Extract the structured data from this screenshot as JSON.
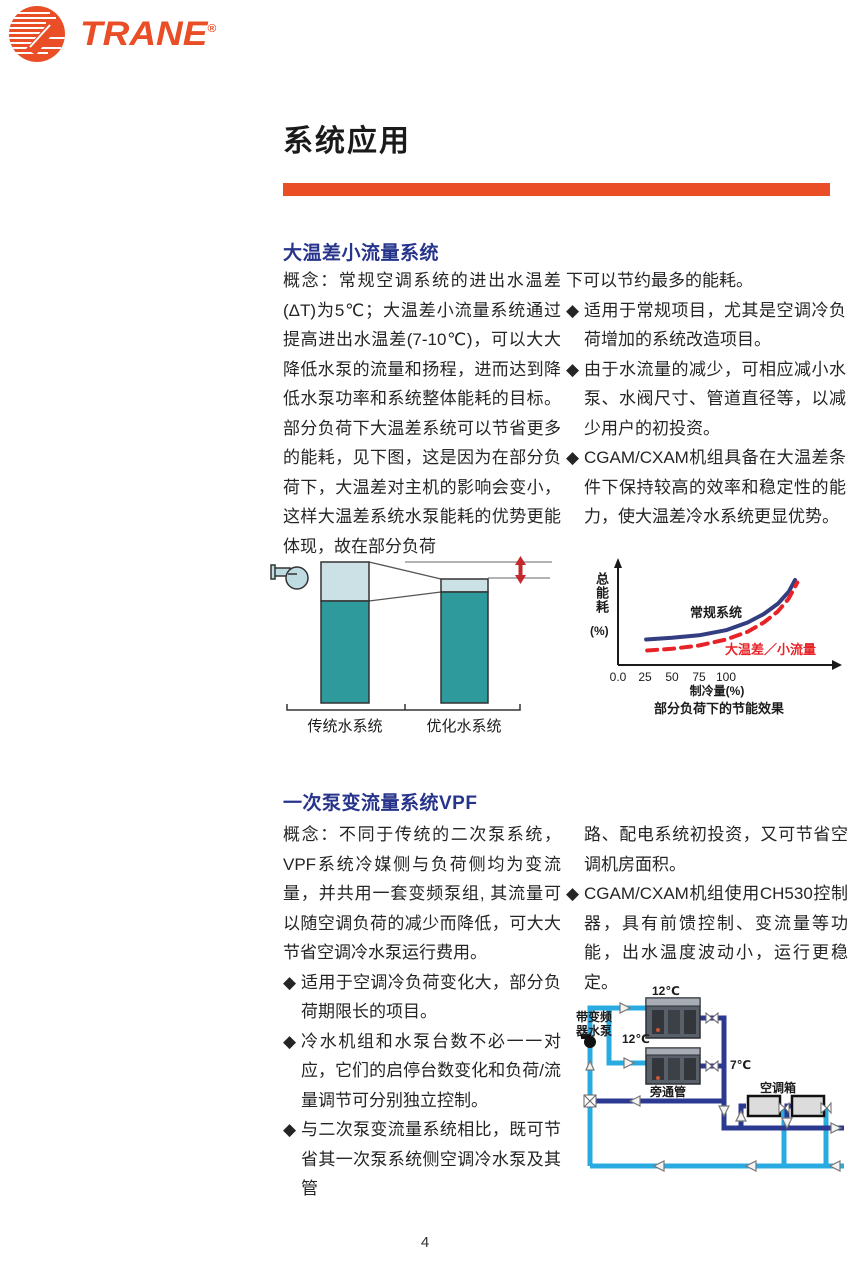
{
  "ui": {
    "bullet": "◆"
  },
  "logo": {
    "brand": "TRANE",
    "reg": "®"
  },
  "header": {
    "title": "系统应用"
  },
  "page": {
    "number": "4"
  },
  "section1": {
    "heading": "大温差小流量系统",
    "paragraph": "概念：常规空调系统的进出水温差(ΔT)为5℃；大温差小流量系统通过提高进出水温差(7-10℃)，可以大大降低水泵的流量和扬程，进而达到降低水泵功率和系统整体能耗的目标。部分负荷下大温差系统可以节省更多的能耗，见下图，这是因为在部分负荷下，大温差对主机的影响会变小，这样大温差系统水泵能耗的优势更能体现，故在部分负荷",
    "right_intro": "下可以节约最多的能耗。",
    "bullets": [
      "适用于常规项目，尤其是空调冷负荷增加的系统改造项目。",
      "由于水流量的减少，可相应减小水泵、水阀尺寸、管道直径等，以减少用户的初投资。",
      "CGAM/CXAM机组具备在大温差条件下保持较高的效率和稳定性的能力，使大温差冷水系统更显优势。"
    ]
  },
  "bar_figure": {
    "left_label": "传统水系统",
    "right_label": "优化水系统",
    "colors": {
      "chiller_energy": "#2E9A9C",
      "pump_energy": "#CCE1E5",
      "savings_arrow": "#C5272D"
    }
  },
  "chart_data": {
    "type": "line",
    "title": "部分负荷下的节能效果",
    "xlabel": "制冷量(%)",
    "ylabel": "总能耗",
    "ylabel_unit": "(%)",
    "x_tick_labels": [
      "0.0",
      "25",
      "50",
      "75",
      "100"
    ],
    "x_ticks": [
      0,
      25,
      50,
      75,
      100
    ],
    "grid": false,
    "legend_position": "inline",
    "series": [
      {
        "name": "常规系统",
        "color": "#333E80",
        "style": "solid",
        "x": [
          26,
          50,
          75,
          100,
          120,
          135,
          148,
          158,
          164
        ],
        "y": [
          30,
          32,
          35,
          41,
          50,
          60,
          72,
          86,
          100
        ]
      },
      {
        "name": "大温差／小流量",
        "color": "#E82328",
        "style": "dashed",
        "x": [
          27,
          50,
          75,
          100,
          120,
          135,
          148,
          158,
          166
        ],
        "y": [
          17,
          19,
          23,
          30,
          39,
          50,
          63,
          78,
          97
        ]
      }
    ]
  },
  "section2": {
    "heading": "一次泵变流量系统VPF",
    "paragraph": "概念：不同于传统的二次泵系统，VPF系统冷媒侧与负荷侧均为变流量，并共用一套变频泵组, 其流量可以随空调负荷的减少而降低，可大大节省空调冷水泵运行费用。",
    "bullets": [
      "适用于空调冷负荷变化大，部分负荷期限长的项目。",
      "冷水机组和水泵台数不必一一对应，它们的启停台数变化和负荷/流量调节可分别独立控制。",
      "与二次泵变流量系统相比，既可节省其一次泵系统侧空调冷水泵及其管"
    ],
    "right_continuation": "路、配电系统初投资，又可节省空调机房面积。",
    "right_bullets": [
      "CGAM/CXAM机组使用CH530控制器，具有前馈控制、变流量等功能，出水温度波动小，运行更稳定。"
    ]
  },
  "diagram": {
    "pump_label": "带变频\n器水泵",
    "chiller1_temp": "12℃",
    "chiller2_temp": "12℃",
    "supply_temp": "7℃",
    "bypass_label": "旁通管",
    "ahu_label": "空调箱",
    "colors": {
      "return_pipe": "#29ABE2",
      "supply_pipe": "#2B3990"
    }
  }
}
